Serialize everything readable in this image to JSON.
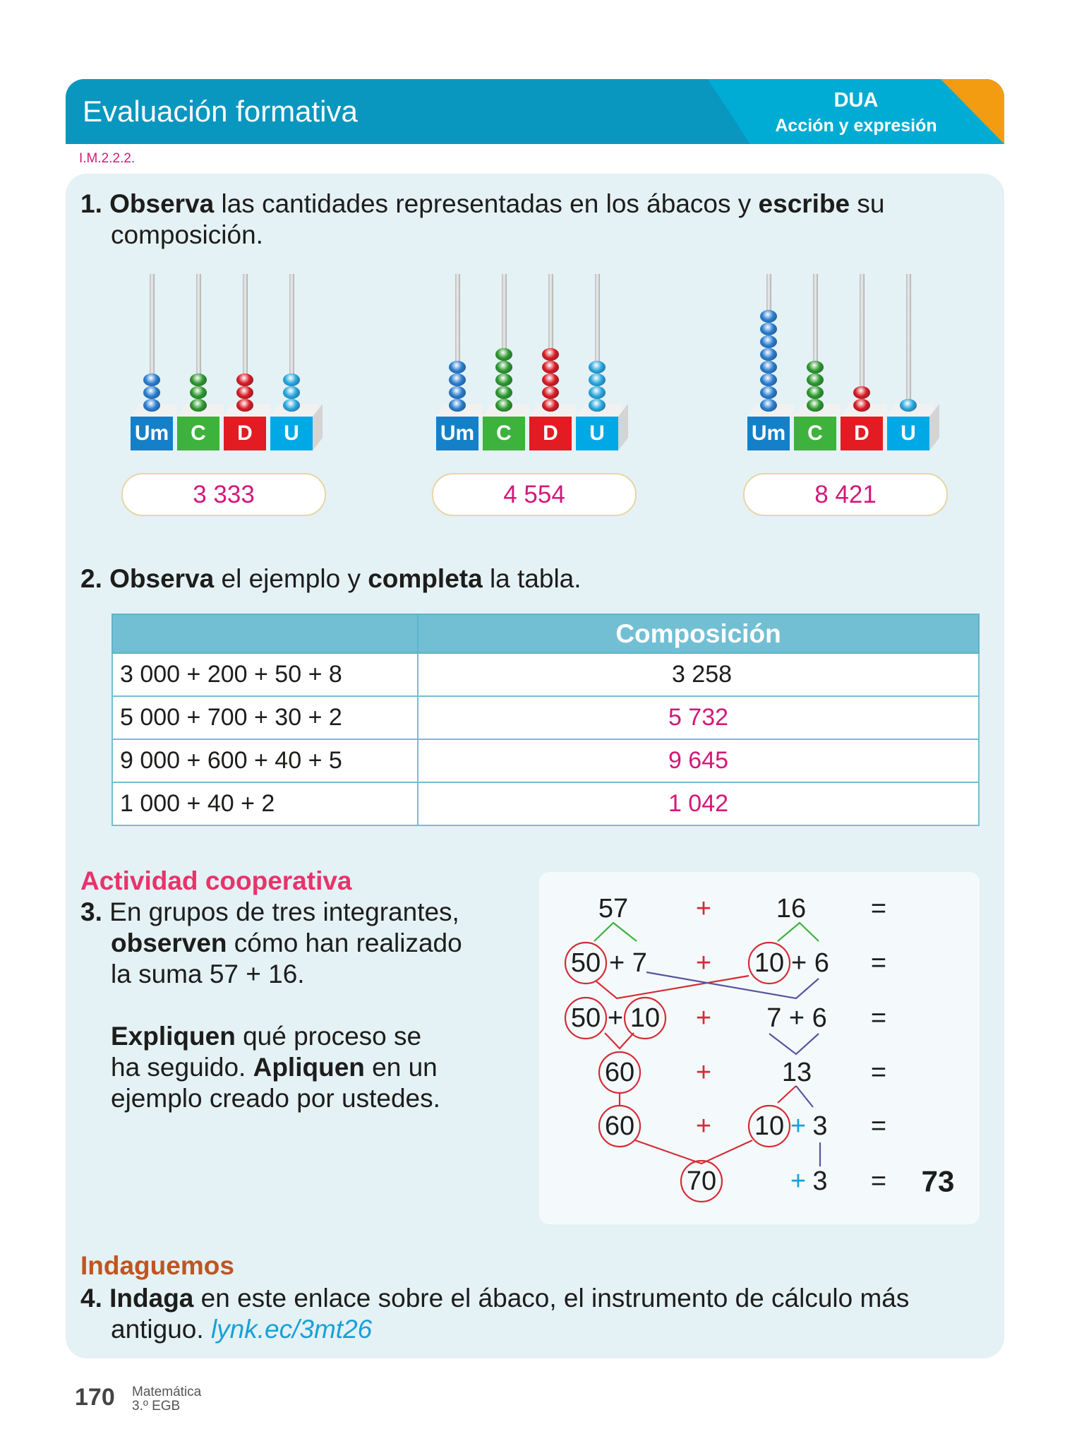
{
  "header": {
    "title": "Evaluación formativa",
    "dua": "DUA",
    "dua_sub": "Acción y expresión",
    "code": "I.M.2.2.2."
  },
  "q1": {
    "num": "1.",
    "b1": "Observa",
    "t1": " las cantidades representadas en los ábacos y ",
    "b2": "escribe",
    "t2": " su",
    "line2": "composición."
  },
  "abaci": [
    {
      "labels": [
        "Um",
        "C",
        "D",
        "U"
      ],
      "beads": [
        3,
        3,
        3,
        3
      ],
      "answer": "3 333"
    },
    {
      "labels": [
        "Um",
        "C",
        "D",
        "U"
      ],
      "beads": [
        4,
        5,
        5,
        4
      ],
      "answer": "4 554"
    },
    {
      "labels": [
        "Um",
        "C",
        "D",
        "U"
      ],
      "beads": [
        8,
        4,
        2,
        1
      ],
      "answer": "8 421"
    }
  ],
  "colors": {
    "Um": "#1580c8",
    "C": "#3db23d",
    "D": "#e31b23",
    "U": "#00a9e6",
    "answer": "#d4187a"
  },
  "q2": {
    "num": "2.",
    "b1": "Observa",
    "t1": " el ejemplo y ",
    "b2": "completa",
    "t2": " la tabla."
  },
  "table": {
    "headers": [
      "",
      "Composición"
    ],
    "rows": [
      [
        "3 000 + 200 + 50 + 8",
        "3 258"
      ],
      [
        "5 000 + 700 + 30 + 2",
        "5 732"
      ],
      [
        "9 000 + 600 + 40 + 5",
        "9 645"
      ],
      [
        "1 000 + 40 + 2",
        "1 042"
      ]
    ]
  },
  "coop": {
    "title": "Actividad cooperativa",
    "num": "3.",
    "l1": "En grupos de tres integrantes,",
    "l2b": "observen",
    "l2": " cómo han realizado",
    "l3": "la suma 57 + 16.",
    "l4b": "Expliquen",
    "l4": " qué proceso se",
    "l5": "ha seguido. ",
    "l5b": "Apliquen",
    "l5c": " en un",
    "l6": "ejemplo creado por ustedes."
  },
  "diagram": {
    "a": "57",
    "b": "16",
    "plus": "+",
    "eq": "=",
    "r2a": "50",
    "r2b": "+ 7",
    "r2c": "10",
    "r2d": "+ 6",
    "r3a": "50",
    "r3b": "+",
    "r3c": "10",
    "r3d": "7 + 6",
    "r4a": "60",
    "r4b": "13",
    "r5a": "60",
    "r5b": "10",
    "r5c": "+",
    "r5d": "3",
    "r6a": "70",
    "r6b": "+",
    "r6c": "3",
    "result": "73"
  },
  "q4": {
    "title": "Indaguemos",
    "num": "4.",
    "b1": "Indaga",
    "t1": " en este enlace sobre el ábaco, el instrumento de cálculo más",
    "t2": "antiguo. ",
    "link": "lynk.ec/3mt26"
  },
  "footer": {
    "page": "170",
    "subject": "Matemática",
    "grade": "3.º EGB"
  }
}
